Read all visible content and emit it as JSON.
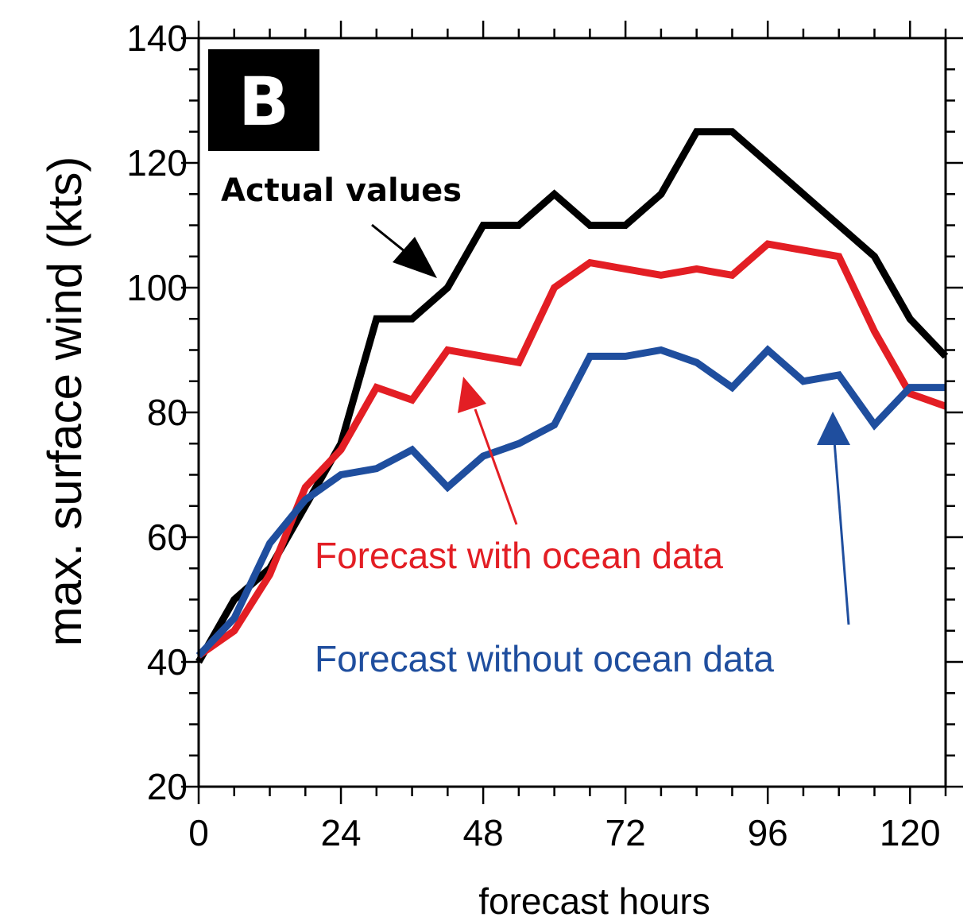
{
  "chart_data": {
    "type": "line",
    "panel_label": "B",
    "xlabel": "forecast hours",
    "ylabel": "max. surface wind (kts)",
    "xlim": [
      0,
      126
    ],
    "ylim": [
      20,
      140
    ],
    "x_ticks": [
      0,
      24,
      48,
      72,
      96,
      120
    ],
    "y_ticks": [
      20,
      40,
      60,
      80,
      100,
      120,
      140
    ],
    "x": [
      0,
      6,
      12,
      18,
      24,
      30,
      36,
      42,
      48,
      54,
      60,
      66,
      72,
      78,
      84,
      90,
      96,
      102,
      108,
      114,
      120,
      126
    ],
    "series": [
      {
        "key": "actual",
        "color": "#000000",
        "values": [
          40,
          50,
          55,
          65,
          75,
          95,
          95,
          100,
          110,
          110,
          115,
          110,
          110,
          115,
          125,
          125,
          120,
          115,
          110,
          105,
          95,
          89
        ]
      },
      {
        "key": "with_ocean",
        "color": "#e31e24",
        "values": [
          41,
          45,
          54,
          68,
          74,
          84,
          82,
          90,
          89,
          88,
          100,
          104,
          103,
          102,
          103,
          102,
          107,
          106,
          105,
          93,
          83,
          81
        ]
      },
      {
        "key": "without_ocean",
        "color": "#1f4e9e",
        "values": [
          41,
          47,
          59,
          66,
          70,
          71,
          74,
          68,
          73,
          75,
          78,
          89,
          89,
          90,
          88,
          84,
          90,
          85,
          86,
          78,
          84,
          84
        ]
      }
    ],
    "annotations": [
      {
        "text": "Actual values",
        "color": "#000000"
      },
      {
        "text": "Forecast with ocean data",
        "color": "#e31e24"
      },
      {
        "text": "Forecast without ocean data",
        "color": "#1f4e9e"
      }
    ],
    "grid": false,
    "legend": "none"
  }
}
